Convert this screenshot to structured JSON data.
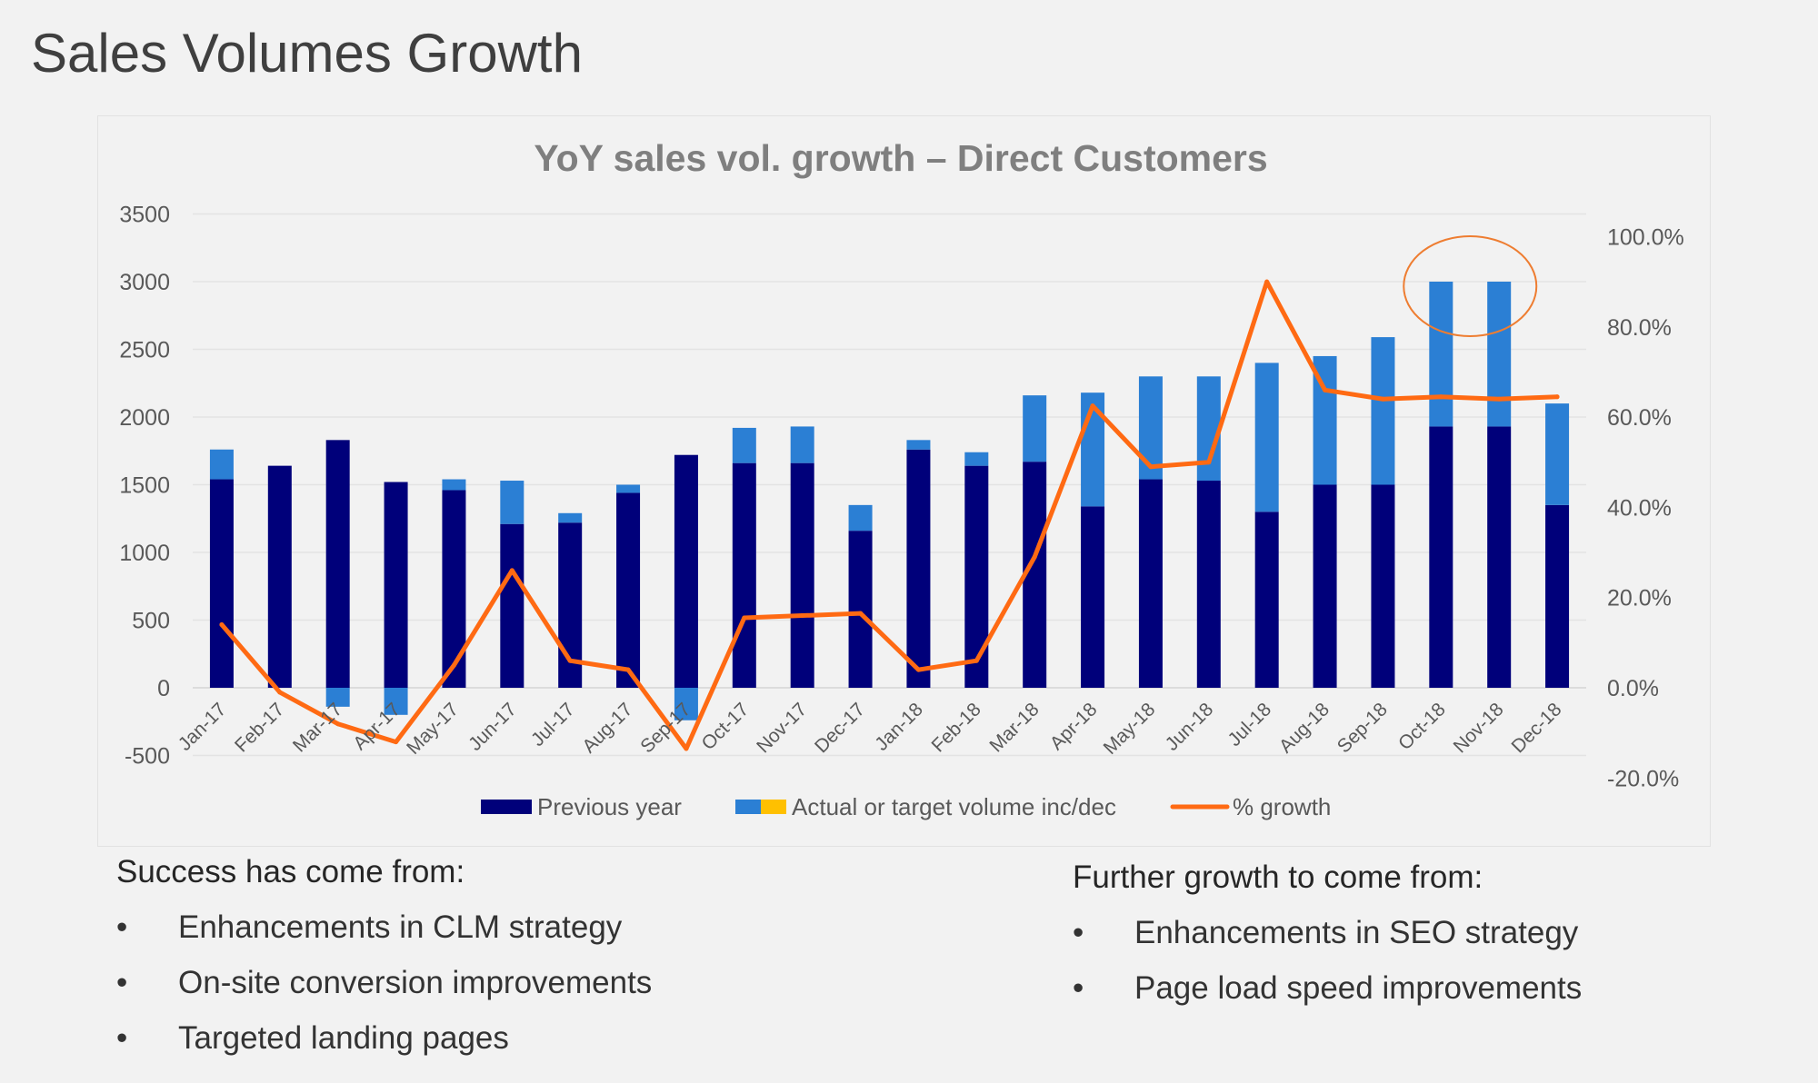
{
  "slide": {
    "title": "Sales Volumes Growth"
  },
  "chart_data": {
    "type": "bar",
    "title": "YoY sales vol. growth – Direct Customers",
    "categories": [
      "Jan-17",
      "Feb-17",
      "Mar-17",
      "Apr-17",
      "May-17",
      "Jun-17",
      "Jul-17",
      "Aug-17",
      "Sep-17",
      "Oct-17",
      "Nov-17",
      "Dec-17",
      "Jan-18",
      "Feb-18",
      "Mar-18",
      "Apr-18",
      "May-18",
      "Jun-18",
      "Jul-18",
      "Aug-18",
      "Sep-18",
      "Oct-18",
      "Nov-18",
      "Dec-18"
    ],
    "series": [
      {
        "name": "Previous year",
        "type": "bar-stacked",
        "axis": "left",
        "color": "#00007a",
        "values": [
          1540,
          1640,
          1830,
          1520,
          1460,
          1210,
          1220,
          1440,
          1720,
          1660,
          1660,
          1160,
          1760,
          1640,
          1670,
          1340,
          1540,
          1530,
          1300,
          1500,
          1500,
          1930,
          1930,
          1350
        ]
      },
      {
        "name": "Actual or target volume inc/dec",
        "type": "bar-stacked",
        "axis": "left",
        "color": "#2b7fd4",
        "color2": "#ffc000",
        "values": [
          220,
          0,
          -140,
          -200,
          80,
          320,
          70,
          60,
          -240,
          260,
          270,
          190,
          70,
          100,
          490,
          840,
          760,
          770,
          1100,
          950,
          1090,
          1070,
          1070,
          750
        ]
      },
      {
        "name": "% growth",
        "type": "line",
        "axis": "right",
        "color": "#ff6a13",
        "values": [
          14.0,
          -1.0,
          -8.0,
          -12.0,
          5.0,
          26.0,
          6.0,
          4.0,
          -13.5,
          15.5,
          16.0,
          16.5,
          4.0,
          6.0,
          29.0,
          62.5,
          49.0,
          50.0,
          90.0,
          66.0,
          64.0,
          64.5,
          64.0,
          64.5
        ]
      }
    ],
    "y_left": {
      "min": -500,
      "max": 3500,
      "step": 500,
      "ticks": [
        "-500",
        "0",
        "500",
        "1000",
        "1500",
        "2000",
        "2500",
        "3000",
        "3500"
      ]
    },
    "y_right": {
      "min": -20,
      "max": 100,
      "step": 20,
      "ticks": [
        "-20.0%",
        "0.0%",
        "20.0%",
        "40.0%",
        "60.0%",
        "80.0%",
        "100.0%"
      ]
    },
    "grid": true,
    "legend_position": "bottom",
    "highlight": {
      "categories": [
        "Oct-18",
        "Nov-18"
      ],
      "shape": "ellipse",
      "color": "#ee7d31"
    }
  },
  "notes": {
    "left": {
      "heading": "Success has come from:",
      "bullet": "•",
      "items": [
        "Enhancements in CLM strategy",
        "On-site conversion improvements",
        "Targeted landing pages"
      ]
    },
    "right": {
      "heading": "Further growth to come from:",
      "bullet": "•",
      "items": [
        "Enhancements in SEO strategy",
        "Page load speed improvements"
      ]
    }
  }
}
